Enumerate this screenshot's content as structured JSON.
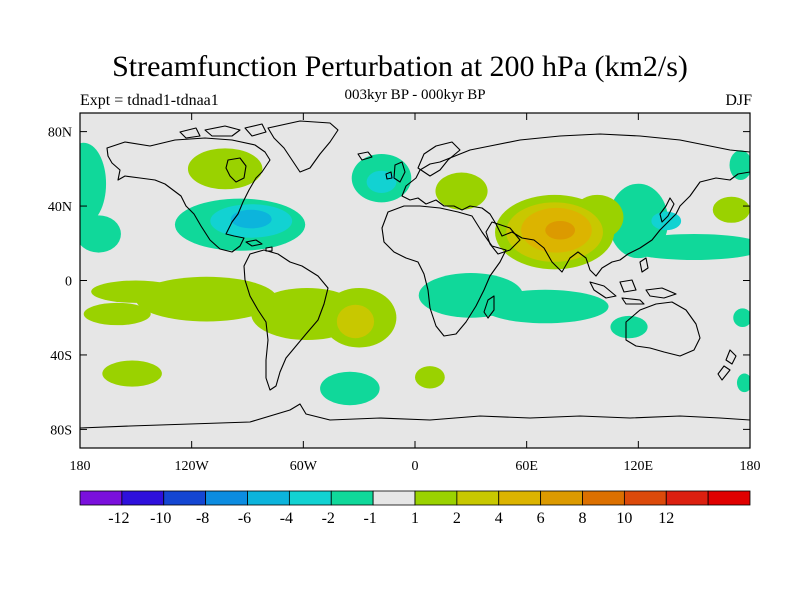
{
  "chart_data": {
    "type": "heatmap",
    "title": "Streamfunction Perturbation at 200 hPa (km2/s)",
    "subtitle": "003kyr BP - 000kyr BP",
    "left_label": "Expt = tdnad1-tdnaa1",
    "right_label": "DJF",
    "x_axis": {
      "range": [
        -180,
        180
      ],
      "ticks": [
        -180,
        -120,
        -60,
        0,
        60,
        120,
        180
      ],
      "tick_labels": [
        "180",
        "120W",
        "60W",
        "0",
        "60E",
        "120E",
        "180"
      ]
    },
    "y_axis": {
      "range": [
        -90,
        90
      ],
      "ticks": [
        80,
        40,
        0,
        -40,
        -80
      ],
      "tick_labels": [
        "80N",
        "40N",
        "0",
        "40S",
        "80S"
      ]
    },
    "colorbar": {
      "colors": [
        "#7a10dc",
        "#2e10dc",
        "#1446d2",
        "#0c8ce0",
        "#0cb4dc",
        "#12d2d2",
        "#10d89a",
        "#e6e6e6",
        "#9ad200",
        "#c8c800",
        "#dcb400",
        "#dc9a00",
        "#dc7000",
        "#dc4a0a",
        "#dc2010",
        "#e00000"
      ],
      "labels": [
        "-12",
        "-10",
        "-8",
        "-6",
        "-4",
        "-2",
        "-1",
        "1",
        "2",
        "4",
        "6",
        "8",
        "10",
        "12"
      ]
    },
    "blobs": [
      {
        "lon": 75,
        "lat": 26,
        "rx": 32,
        "ry": 20,
        "level": 2
      },
      {
        "lon": 75,
        "lat": 26,
        "rx": 26,
        "ry": 16,
        "level": 4
      },
      {
        "lon": 76,
        "lat": 27,
        "rx": 19,
        "ry": 12,
        "level": 6
      },
      {
        "lon": 78,
        "lat": 27,
        "rx": 8,
        "ry": 5,
        "level": 8
      },
      {
        "lon": 98,
        "lat": 34,
        "rx": 14,
        "ry": 12,
        "level": 2
      },
      {
        "lon": -30,
        "lat": -20,
        "rx": 20,
        "ry": 16,
        "level": 2
      },
      {
        "lon": -32,
        "lat": -22,
        "rx": 10,
        "ry": 9,
        "level": 4
      },
      {
        "lon": -58,
        "lat": -18,
        "rx": 30,
        "ry": 14,
        "level": 2
      },
      {
        "lon": -112,
        "lat": -10,
        "rx": 38,
        "ry": 12,
        "level": 2
      },
      {
        "lon": -150,
        "lat": -6,
        "rx": 24,
        "ry": 6,
        "level": 2
      },
      {
        "lon": -160,
        "lat": -18,
        "rx": 18,
        "ry": 6,
        "level": 2
      },
      {
        "lon": -102,
        "lat": 60,
        "rx": 20,
        "ry": 11,
        "level": 2
      },
      {
        "lon": 25,
        "lat": 48,
        "rx": 14,
        "ry": 10,
        "level": 2
      },
      {
        "lon": 170,
        "lat": 38,
        "rx": 10,
        "ry": 7,
        "level": 2
      },
      {
        "lon": -152,
        "lat": -50,
        "rx": 16,
        "ry": 7,
        "level": 2
      },
      {
        "lon": 8,
        "lat": -52,
        "rx": 8,
        "ry": 6,
        "level": 2
      },
      {
        "lon": -94,
        "lat": 30,
        "rx": 35,
        "ry": 14,
        "level": -1
      },
      {
        "lon": -88,
        "lat": 32,
        "rx": 22,
        "ry": 9,
        "level": -2
      },
      {
        "lon": -88,
        "lat": 33,
        "rx": 11,
        "ry": 5,
        "level": -4
      },
      {
        "lon": -18,
        "lat": 55,
        "rx": 16,
        "ry": 13,
        "level": -1
      },
      {
        "lon": -18,
        "lat": 53,
        "rx": 8,
        "ry": 6,
        "level": -2
      },
      {
        "lon": 30,
        "lat": -8,
        "rx": 28,
        "ry": 12,
        "level": -1
      },
      {
        "lon": 70,
        "lat": -14,
        "rx": 34,
        "ry": 9,
        "level": -1
      },
      {
        "lon": 120,
        "lat": 32,
        "rx": 16,
        "ry": 20,
        "level": -1
      },
      {
        "lon": 135,
        "lat": 32,
        "rx": 8,
        "ry": 5,
        "level": -2
      },
      {
        "lon": 150,
        "lat": 18,
        "rx": 38,
        "ry": 7,
        "level": -1
      },
      {
        "lon": -178,
        "lat": 52,
        "rx": 12,
        "ry": 22,
        "level": -1
      },
      {
        "lon": -170,
        "lat": 25,
        "rx": 12,
        "ry": 10,
        "level": -1
      },
      {
        "lon": 175,
        "lat": 62,
        "rx": 6,
        "ry": 8,
        "level": -1
      },
      {
        "lon": -35,
        "lat": -58,
        "rx": 16,
        "ry": 9,
        "level": -1
      },
      {
        "lon": 115,
        "lat": -25,
        "rx": 10,
        "ry": 6,
        "level": -1
      },
      {
        "lon": 176,
        "lat": -20,
        "rx": 5,
        "ry": 5,
        "level": -1
      },
      {
        "lon": 177,
        "lat": -55,
        "rx": 4,
        "ry": 5,
        "level": -1
      }
    ]
  }
}
